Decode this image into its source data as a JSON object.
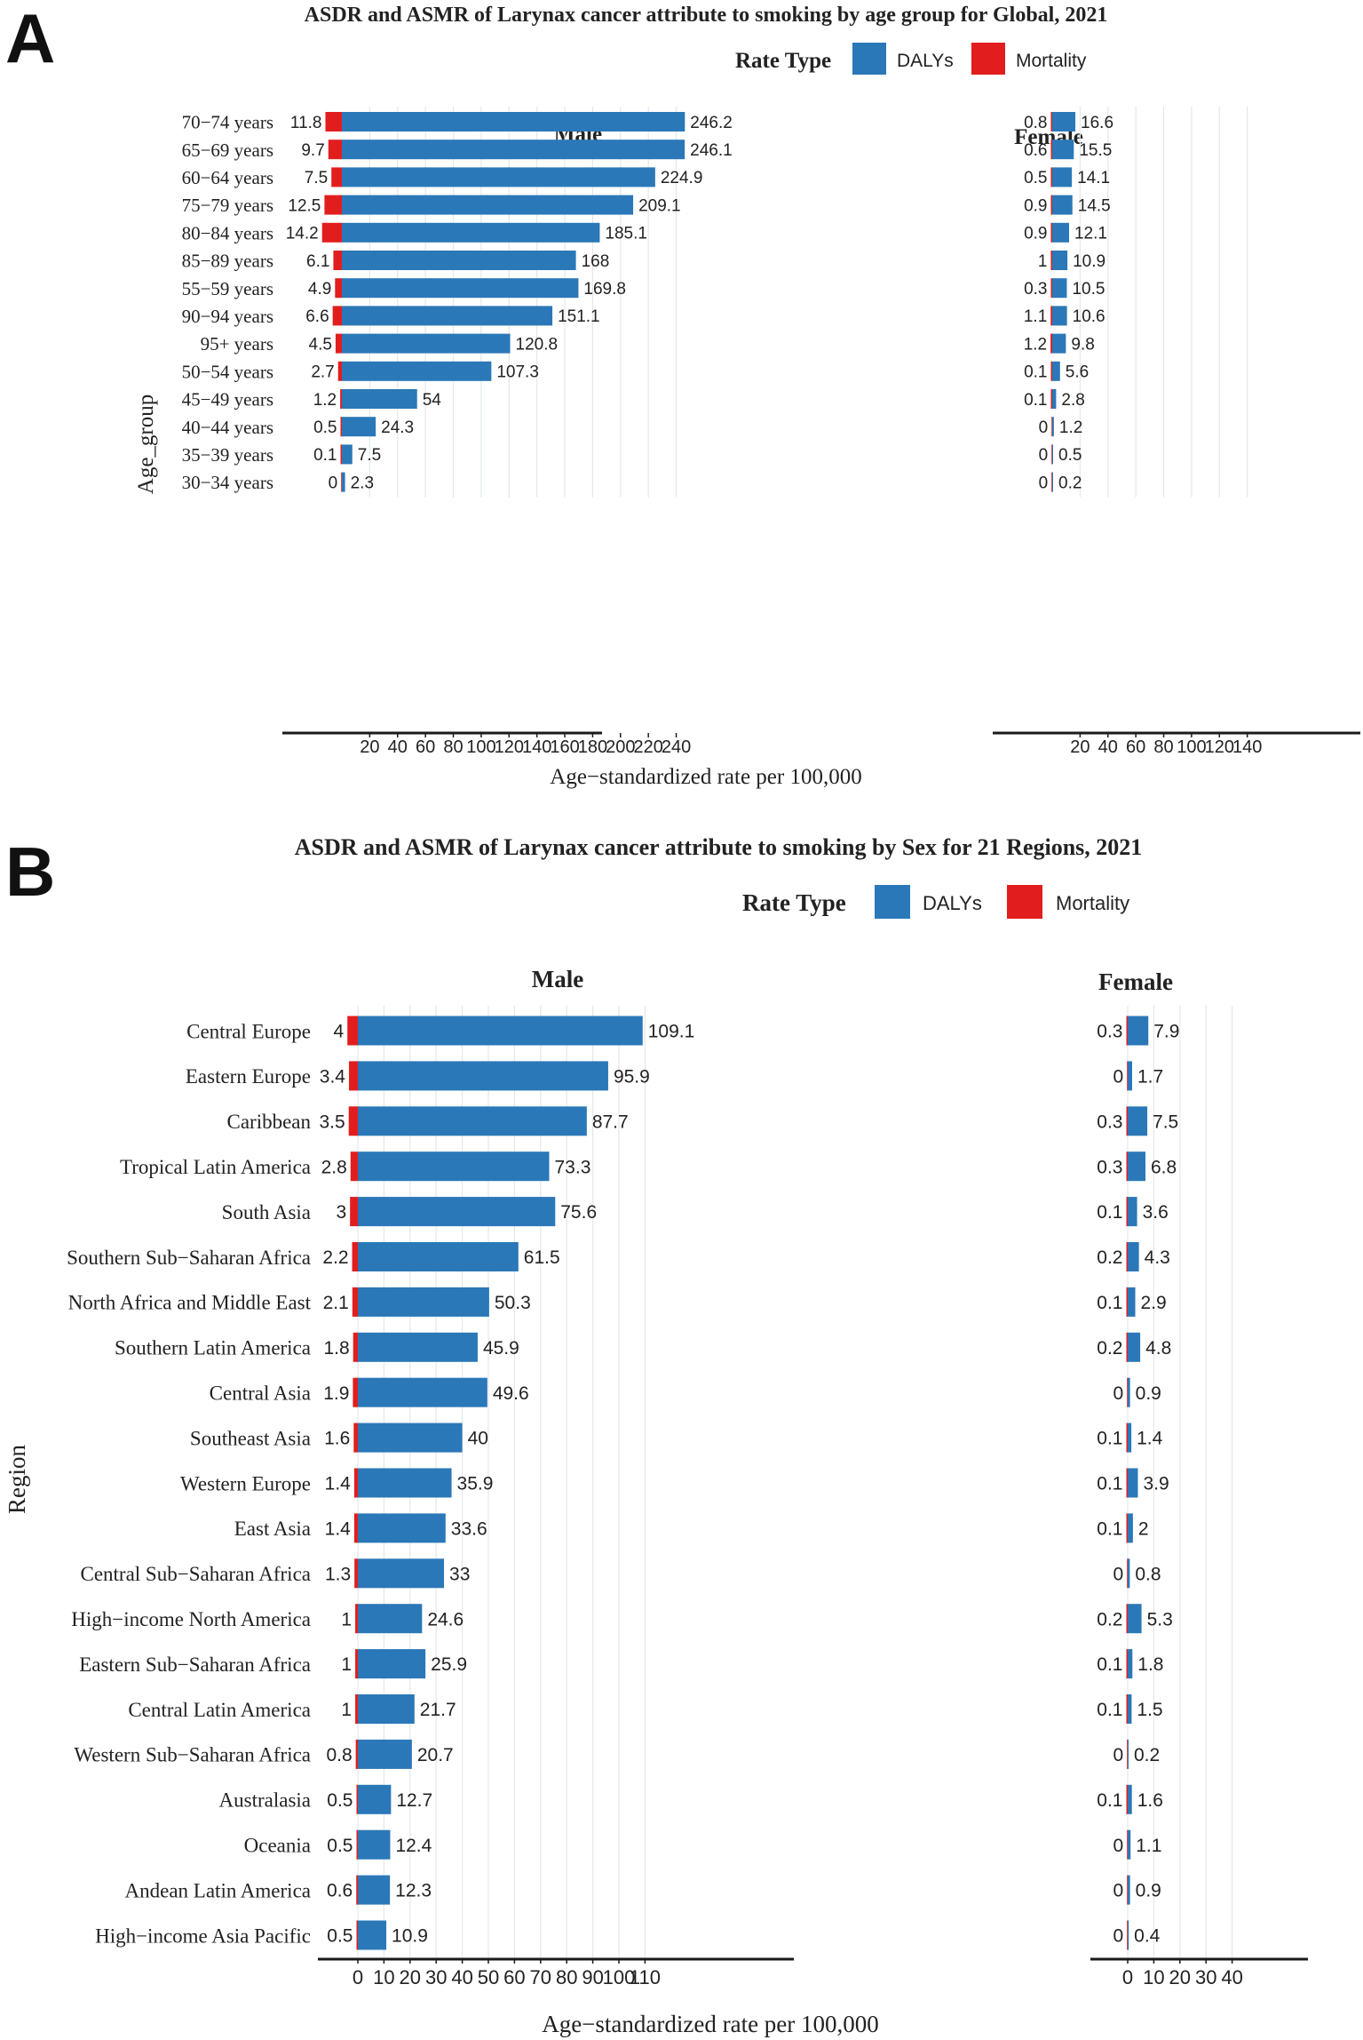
{
  "colors": {
    "dalys": "#2a78b8",
    "mortality": "#e21d1d",
    "grid": "#e3e7ec",
    "axis": "#1a1a1a",
    "text": "#222222"
  },
  "panelA": {
    "panel_label": "A",
    "title": "ASDR and ASMR of Larynax cancer attribute to smoking by age group for Global, 2021",
    "legend_title": "Rate Type",
    "legend_items": [
      "DALYs",
      "Mortality"
    ],
    "facet_male": "Male",
    "facet_female": "Female",
    "ylabel": "Age_group",
    "xlabel": "Age−standardized rate per 100,000"
  },
  "panelB": {
    "panel_label": "B",
    "title": "ASDR and ASMR of Larynax cancer attribute to smoking by Sex for 21 Regions, 2021",
    "legend_title": "Rate Type",
    "legend_items": [
      "DALYs",
      "Mortality"
    ],
    "facet_male": "Male",
    "facet_female": "Female",
    "ylabel": "Region",
    "xlabel": "Age−standardized rate per 100,000"
  },
  "chart_data": [
    {
      "type": "bar",
      "orientation": "horizontal",
      "panel": "A",
      "title": "ASDR and ASMR of Larynax cancer attribute to smoking by age group for Global, 2021",
      "categories": [
        "70−74 years",
        "65−69 years",
        "60−64 years",
        "75−79 years",
        "80−84 years",
        "85−89 years",
        "55−59 years",
        "90−94 years",
        "95+ years",
        "50−54 years",
        "45−49 years",
        "40−44 years",
        "35−39 years",
        "30−34 years"
      ],
      "male": {
        "dalys": [
          246.2,
          246.1,
          224.9,
          209.1,
          185.1,
          168,
          169.8,
          151.1,
          120.8,
          107.3,
          54,
          24.3,
          7.5,
          2.3
        ],
        "mortality": [
          11.8,
          9.7,
          7.5,
          12.5,
          14.2,
          6.1,
          4.9,
          6.6,
          4.5,
          2.7,
          1.2,
          0.5,
          0.1,
          0
        ],
        "xticks": [
          "20",
          "40",
          "60",
          "80",
          "100",
          "120",
          "140",
          "160",
          "180",
          "200",
          "220",
          "240"
        ]
      },
      "female": {
        "dalys": [
          16.6,
          15.5,
          14.1,
          14.5,
          12.1,
          10.9,
          10.5,
          10.6,
          9.8,
          5.6,
          2.8,
          1.2,
          0.5,
          0.2
        ],
        "mortality": [
          0.8,
          0.6,
          0.5,
          0.9,
          0.9,
          1,
          0.3,
          1.1,
          1.2,
          0.1,
          0.1,
          0,
          0,
          0
        ],
        "xticks": [
          "20",
          "40",
          "60",
          "80",
          "100",
          "120",
          "140"
        ]
      },
      "xlabel": "Age−standardized rate per 100,000",
      "ylabel": "Age_group",
      "legend": [
        "DALYs",
        "Mortality"
      ]
    },
    {
      "type": "bar",
      "orientation": "horizontal",
      "panel": "B",
      "title": "ASDR and ASMR of Larynax cancer attribute to smoking by Sex for 21 Regions, 2021",
      "categories": [
        "Central Europe",
        "Eastern Europe",
        "Caribbean",
        "Tropical Latin America",
        "South Asia",
        "Southern Sub−Saharan Africa",
        "North Africa and Middle East",
        "Southern Latin America",
        "Central Asia",
        "Southeast Asia",
        "Western Europe",
        "East Asia",
        "Central Sub−Saharan Africa",
        "High−income North America",
        "Eastern Sub−Saharan Africa",
        "Central Latin America",
        "Western Sub−Saharan Africa",
        "Australasia",
        "Oceania",
        "Andean Latin America",
        "High−income Asia Pacific"
      ],
      "male": {
        "dalys": [
          109.1,
          95.9,
          87.7,
          73.3,
          75.6,
          61.5,
          50.3,
          45.9,
          49.6,
          40,
          35.9,
          33.6,
          33,
          24.6,
          25.9,
          21.7,
          20.7,
          12.7,
          12.4,
          12.3,
          10.9
        ],
        "mortality": [
          4,
          3.4,
          3.5,
          2.8,
          3,
          2.2,
          2.1,
          1.8,
          1.9,
          1.6,
          1.4,
          1.4,
          1.3,
          1,
          1,
          1,
          0.8,
          0.5,
          0.5,
          0.6,
          0.5
        ],
        "xticks": [
          "0",
          "10",
          "20",
          "30",
          "40",
          "50",
          "60",
          "70",
          "80",
          "90",
          "100",
          "110"
        ]
      },
      "female": {
        "dalys": [
          7.9,
          1.7,
          7.5,
          6.8,
          3.6,
          4.3,
          2.9,
          4.8,
          0.9,
          1.4,
          3.9,
          2,
          0.8,
          5.3,
          1.8,
          1.5,
          0.2,
          1.6,
          1.1,
          0.9,
          0.4
        ],
        "mortality": [
          0.3,
          0,
          0.3,
          0.3,
          0.1,
          0.2,
          0.1,
          0.2,
          0,
          0.1,
          0.1,
          0.1,
          0,
          0.2,
          0.1,
          0.1,
          0,
          0.1,
          0,
          0,
          0
        ],
        "xticks": [
          "0",
          "10",
          "20",
          "30",
          "40"
        ]
      },
      "xlabel": "Age−standardized rate per 100,000",
      "ylabel": "Region",
      "legend": [
        "DALYs",
        "Mortality"
      ]
    }
  ]
}
